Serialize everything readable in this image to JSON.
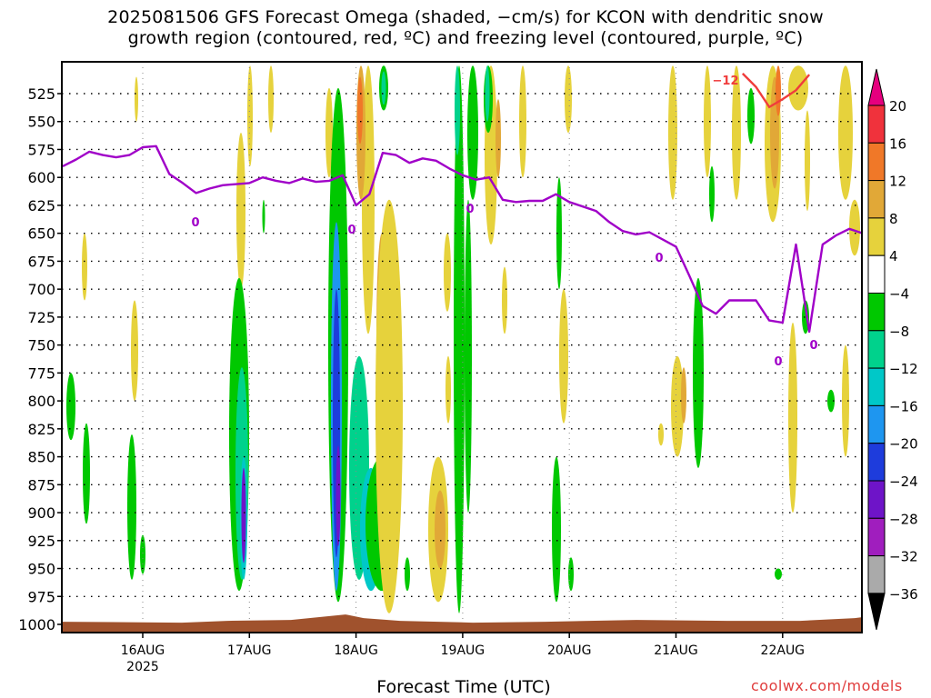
{
  "title": {
    "line1": "2025081506 GFS Forecast Omega (shaded, −cm/s) for KCON with dendritic snow",
    "line2": "growth region (contoured, red, ºC) and freezing level (contoured, purple, ºC)"
  },
  "credit": "coolwx.com/models",
  "chart_data": {
    "type": "heatmap",
    "xlabel": "Forecast Time (UTC)",
    "ylabel": "",
    "x_range": [
      "2025-08-15 06Z",
      "2025-08-22 18Z"
    ],
    "y_range": [
      1000,
      500
    ],
    "y_axis": "pressure (hPa), inverted",
    "y_ticks": [
      525,
      550,
      575,
      600,
      625,
      650,
      675,
      700,
      725,
      750,
      775,
      800,
      825,
      850,
      875,
      900,
      925,
      950,
      975,
      1000
    ],
    "x_ticks": [
      {
        "label": "16AUG",
        "sublabel": "2025",
        "day": 16
      },
      {
        "label": "17AUG",
        "sublabel": "",
        "day": 17
      },
      {
        "label": "18AUG",
        "sublabel": "",
        "day": 18
      },
      {
        "label": "19AUG",
        "sublabel": "",
        "day": 19
      },
      {
        "label": "20AUG",
        "sublabel": "",
        "day": 20
      },
      {
        "label": "21AUG",
        "sublabel": "",
        "day": 21
      },
      {
        "label": "22AUG",
        "sublabel": "",
        "day": 22
      }
    ],
    "grid": true,
    "colorbar": {
      "placement": "right",
      "labels": [
        "20",
        "16",
        "12",
        "8",
        "4",
        "−4",
        "−8",
        "−12",
        "−16",
        "−20",
        "−24",
        "−28",
        "−32",
        "−36"
      ],
      "bins": [
        {
          "color": "#f0323c"
        },
        {
          "color": "#f07828"
        },
        {
          "color": "#e1a837"
        },
        {
          "color": "#e6d23c"
        },
        {
          "color": "#ffffff"
        },
        {
          "color": "#00c800"
        },
        {
          "color": "#00d28c"
        },
        {
          "color": "#00c8c8"
        },
        {
          "color": "#1e96f0"
        },
        {
          "color": "#1e3cdc"
        },
        {
          "color": "#6e14c8"
        },
        {
          "color": "#a01ebe"
        },
        {
          "color": "#aaaaaa"
        }
      ],
      "top_arrow_color": "#e6007e",
      "bottom_arrow_color": "#000000"
    },
    "freezing_level": {
      "label": "0",
      "color": "#a000c8",
      "points": [
        [
          "15 06",
          590
        ],
        [
          "15 09",
          584
        ],
        [
          "15 12",
          577
        ],
        [
          "15 15",
          580
        ],
        [
          "15 18",
          582
        ],
        [
          "15 21",
          580
        ],
        [
          "16 00",
          573
        ],
        [
          "16 03",
          572
        ],
        [
          "16 06",
          597
        ],
        [
          "16 09",
          605
        ],
        [
          "16 12",
          614
        ],
        [
          "16 15",
          610
        ],
        [
          "16 18",
          607
        ],
        [
          "17 00",
          605
        ],
        [
          "17 03",
          600
        ],
        [
          "17 06",
          603
        ],
        [
          "17 09",
          605
        ],
        [
          "17 12",
          601
        ],
        [
          "17 15",
          604
        ],
        [
          "17 18",
          603
        ],
        [
          "17 21",
          598
        ],
        [
          "18 00",
          625
        ],
        [
          "18 03",
          615
        ],
        [
          "18 06",
          578
        ],
        [
          "18 09",
          580
        ],
        [
          "18 12",
          587
        ],
        [
          "18 15",
          583
        ],
        [
          "18 18",
          585
        ],
        [
          "18 21",
          592
        ],
        [
          "19 00",
          598
        ],
        [
          "19 03",
          602
        ],
        [
          "19 06",
          600
        ],
        [
          "19 09",
          620
        ],
        [
          "19 12",
          622
        ],
        [
          "19 15",
          621
        ],
        [
          "19 18",
          621
        ],
        [
          "19 21",
          615
        ],
        [
          "20 00",
          622
        ],
        [
          "20 03",
          626
        ],
        [
          "20 06",
          630
        ],
        [
          "20 09",
          640
        ],
        [
          "20 12",
          648
        ],
        [
          "20 15",
          651
        ],
        [
          "20 18",
          649
        ],
        [
          "21 00",
          662
        ],
        [
          "21 03",
          688
        ],
        [
          "21 06",
          715
        ],
        [
          "21 09",
          722
        ],
        [
          "21 12",
          710
        ],
        [
          "21 18",
          710
        ],
        [
          "21 21",
          728
        ],
        [
          "22 00",
          730
        ],
        [
          "22 03",
          660
        ],
        [
          "22 06",
          738
        ],
        [
          "22 09",
          660
        ],
        [
          "22 12",
          652
        ],
        [
          "22 15",
          646
        ],
        [
          "22 18",
          650
        ]
      ]
    },
    "dgz_contour": {
      "label": "−12",
      "color": "#f03c3c",
      "points": [
        [
          "21 15",
          507
        ],
        [
          "21 18",
          519
        ],
        [
          "21 21",
          537
        ],
        [
          "22 00",
          530
        ],
        [
          "22 03",
          522
        ],
        [
          "22 06",
          508
        ]
      ]
    },
    "ground": {
      "color": "#a0522d",
      "top_hpa": 996
    }
  }
}
